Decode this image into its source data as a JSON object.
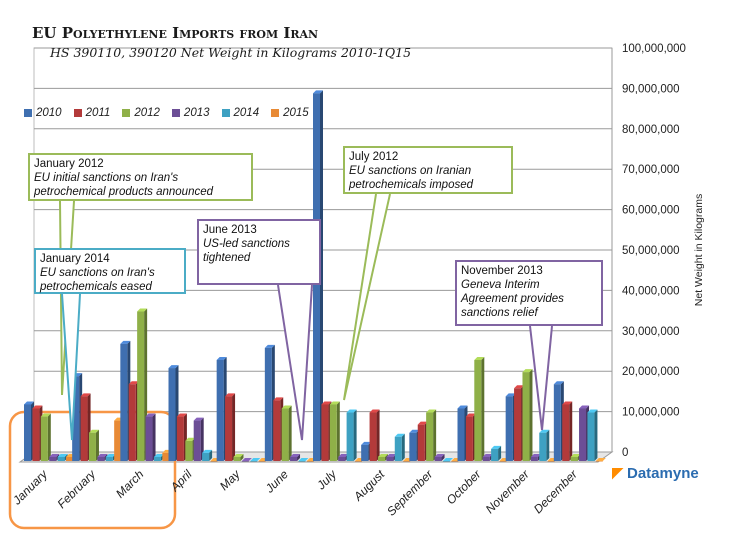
{
  "chart_data": {
    "type": "bar",
    "title": "EU Polyethylene Imports from Iran",
    "subtitle": "HS 390110, 390120 Net Weight in Kilograms 2010-1Q15",
    "ylabel": "Net Weight in Kilograms",
    "ylim": [
      0,
      100000000
    ],
    "yticks": [
      "0",
      "10,000,000",
      "20,000,000",
      "30,000,000",
      "40,000,000",
      "50,000,000",
      "60,000,000",
      "70,000,000",
      "80,000,000",
      "90,000,000",
      "100,000,000"
    ],
    "categories": [
      "January",
      "February",
      "March",
      "April",
      "May",
      "June",
      "July",
      "August",
      "September",
      "October",
      "November",
      "December"
    ],
    "series": [
      {
        "name": "2010",
        "color": "#3f6fb0",
        "values": [
          14000000,
          21000000,
          29000000,
          23000000,
          25000000,
          28000000,
          91000000,
          4000000,
          7000000,
          13000000,
          16000000,
          19000000
        ]
      },
      {
        "name": "2011",
        "color": "#b33a3a",
        "values": [
          13000000,
          16000000,
          19000000,
          11000000,
          16000000,
          15000000,
          14000000,
          12000000,
          9000000,
          11000000,
          18000000,
          14000000
        ]
      },
      {
        "name": "2012",
        "color": "#8fb048",
        "values": [
          11000000,
          7000000,
          37000000,
          5000000,
          1000000,
          13000000,
          14000000,
          1000000,
          12000000,
          25000000,
          22000000,
          1000000
        ]
      },
      {
        "name": "2013",
        "color": "#6c4e96",
        "values": [
          1000000,
          1000000,
          11000000,
          10000000,
          0,
          1000000,
          1000000,
          1000000,
          1000000,
          1000000,
          1000000,
          13000000
        ]
      },
      {
        "name": "2014",
        "color": "#3ea1c2",
        "values": [
          1000000,
          1000000,
          1000000,
          2000000,
          0,
          0,
          12000000,
          6000000,
          0,
          3000000,
          7000000,
          12000000
        ]
      },
      {
        "name": "2015",
        "color": "#e88a35",
        "values": [
          1000000,
          10000000,
          2000000,
          0,
          0,
          0,
          0,
          0,
          0,
          0,
          0,
          0
        ]
      }
    ],
    "annotations": [
      {
        "date": "January 2012",
        "text": "EU initial sanctions on Iran's petrochemical products announced",
        "color": "#9bbb59"
      },
      {
        "date": "January 2014",
        "text": "EU sanctions on Iran's petrochemicals eased",
        "color": "#4bacc6"
      },
      {
        "date": "June 2013",
        "text": "US-led sanctions tightened",
        "color": "#8064a2"
      },
      {
        "date": "July 2012",
        "text": "EU sanctions on Iranian petrochemicals imposed",
        "color": "#9bbb59"
      },
      {
        "date": "November 2013",
        "text": "Geneva Interim Agreement provides sanctions relief",
        "color": "#8064a2"
      }
    ],
    "highlight_color": "#f79646",
    "legend": "top-left",
    "grid": true
  },
  "brand": {
    "name": "Datamyne"
  }
}
